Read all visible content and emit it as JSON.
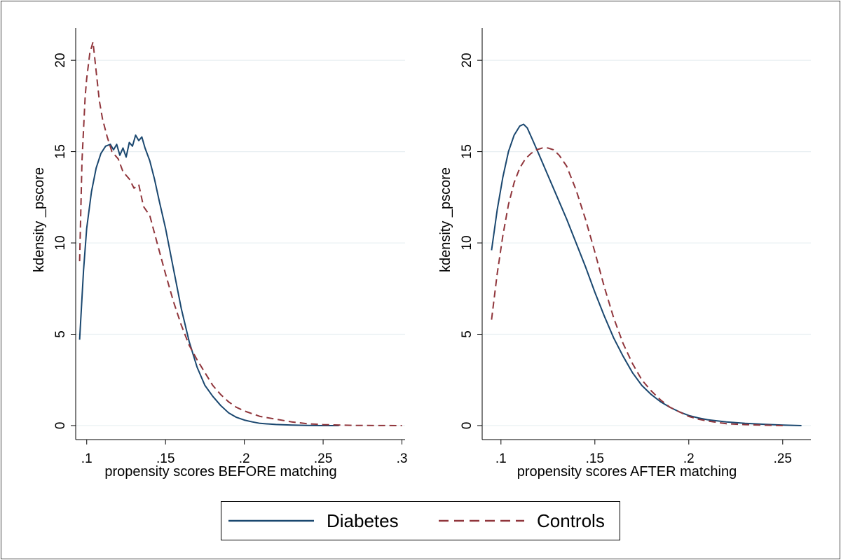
{
  "colors": {
    "diabetes": "#1a476f",
    "controls": "#90353b",
    "grid": "#e8eff2",
    "axis": "#000000"
  },
  "legend": {
    "items": [
      {
        "label": "Diabetes",
        "style": "solid"
      },
      {
        "label": "Controls",
        "style": "dashed"
      }
    ]
  },
  "chart_data": [
    {
      "type": "line",
      "title": "",
      "xlabel": "propensity scores BEFORE matching",
      "ylabel": "kdensity _pscore",
      "xlim": [
        0.093,
        0.302
      ],
      "ylim": [
        -0.5,
        21.5
      ],
      "xticks": [
        0.1,
        0.15,
        0.2,
        0.25,
        0.3
      ],
      "xtick_labels": [
        ".1",
        ".15",
        ".2",
        ".25",
        ".3"
      ],
      "yticks": [
        0,
        5,
        10,
        15,
        20
      ],
      "ytick_labels": [
        "0",
        "5",
        "10",
        "15",
        "20"
      ],
      "grid": true,
      "series": [
        {
          "name": "Diabetes",
          "style": "solid",
          "x": [
            0.0955,
            0.098,
            0.1,
            0.103,
            0.106,
            0.109,
            0.112,
            0.115,
            0.117,
            0.119,
            0.121,
            0.123,
            0.125,
            0.127,
            0.129,
            0.131,
            0.133,
            0.135,
            0.137,
            0.14,
            0.143,
            0.146,
            0.15,
            0.155,
            0.16,
            0.165,
            0.17,
            0.175,
            0.18,
            0.185,
            0.19,
            0.195,
            0.2,
            0.205,
            0.21,
            0.22,
            0.23,
            0.24,
            0.25,
            0.26
          ],
          "y": [
            4.7,
            8.5,
            10.8,
            12.8,
            14.1,
            14.9,
            15.3,
            15.4,
            15.1,
            15.4,
            14.8,
            15.2,
            14.7,
            15.5,
            15.3,
            15.9,
            15.6,
            15.8,
            15.2,
            14.5,
            13.5,
            12.3,
            10.8,
            8.6,
            6.4,
            4.6,
            3.2,
            2.2,
            1.6,
            1.1,
            0.7,
            0.45,
            0.3,
            0.2,
            0.12,
            0.06,
            0.03,
            0.01,
            0.0,
            0.0
          ]
        },
        {
          "name": "Controls",
          "style": "dashed",
          "x": [
            0.0955,
            0.097,
            0.099,
            0.1,
            0.102,
            0.104,
            0.106,
            0.108,
            0.11,
            0.113,
            0.116,
            0.12,
            0.123,
            0.127,
            0.13,
            0.133,
            0.136,
            0.14,
            0.145,
            0.15,
            0.155,
            0.16,
            0.165,
            0.17,
            0.175,
            0.18,
            0.185,
            0.19,
            0.195,
            0.2,
            0.21,
            0.22,
            0.23,
            0.24,
            0.25,
            0.27,
            0.3
          ],
          "y": [
            9.0,
            14.5,
            18.0,
            19.0,
            20.4,
            21.0,
            19.4,
            17.8,
            16.8,
            15.8,
            15.0,
            14.6,
            13.9,
            13.5,
            13.0,
            13.2,
            12.0,
            11.5,
            9.9,
            8.3,
            6.8,
            5.5,
            4.4,
            3.6,
            2.9,
            2.2,
            1.7,
            1.3,
            1.0,
            0.8,
            0.5,
            0.35,
            0.2,
            0.1,
            0.05,
            0.01,
            0.0
          ]
        }
      ]
    },
    {
      "type": "line",
      "title": "",
      "xlabel": "propensity scores AFTER matching",
      "ylabel": "kdensity _pscore",
      "xlim": [
        0.09,
        0.265
      ],
      "ylim": [
        -0.5,
        21.5
      ],
      "xticks": [
        0.1,
        0.15,
        0.2,
        0.25
      ],
      "xtick_labels": [
        ".1",
        ".15",
        ".2",
        ".25"
      ],
      "yticks": [
        0,
        5,
        10,
        15,
        20
      ],
      "ytick_labels": [
        "0",
        "5",
        "10",
        "15",
        "20"
      ],
      "grid": true,
      "series": [
        {
          "name": "Diabetes",
          "style": "solid",
          "x": [
            0.095,
            0.098,
            0.101,
            0.104,
            0.107,
            0.11,
            0.112,
            0.114,
            0.117,
            0.12,
            0.125,
            0.13,
            0.135,
            0.14,
            0.145,
            0.15,
            0.155,
            0.16,
            0.165,
            0.17,
            0.175,
            0.18,
            0.185,
            0.19,
            0.195,
            0.2,
            0.205,
            0.21,
            0.22,
            0.23,
            0.24,
            0.25,
            0.26
          ],
          "y": [
            9.6,
            11.8,
            13.6,
            15.0,
            15.9,
            16.4,
            16.5,
            16.3,
            15.6,
            14.9,
            13.7,
            12.5,
            11.3,
            10.0,
            8.7,
            7.3,
            6.0,
            4.8,
            3.8,
            2.9,
            2.2,
            1.7,
            1.3,
            1.0,
            0.75,
            0.55,
            0.42,
            0.32,
            0.2,
            0.12,
            0.07,
            0.03,
            0.0
          ]
        },
        {
          "name": "Controls",
          "style": "dashed",
          "x": [
            0.095,
            0.098,
            0.101,
            0.104,
            0.107,
            0.11,
            0.113,
            0.116,
            0.119,
            0.122,
            0.125,
            0.128,
            0.131,
            0.135,
            0.14,
            0.145,
            0.15,
            0.155,
            0.16,
            0.165,
            0.17,
            0.175,
            0.18,
            0.185,
            0.19,
            0.195,
            0.2,
            0.205,
            0.21,
            0.22,
            0.23,
            0.24,
            0.25
          ],
          "y": [
            5.8,
            8.3,
            10.4,
            12.1,
            13.3,
            14.1,
            14.6,
            14.9,
            15.1,
            15.2,
            15.2,
            15.1,
            14.8,
            14.2,
            12.9,
            11.3,
            9.5,
            7.6,
            5.9,
            4.5,
            3.4,
            2.5,
            1.9,
            1.4,
            1.0,
            0.75,
            0.5,
            0.35,
            0.25,
            0.1,
            0.05,
            0.02,
            0.0
          ]
        }
      ]
    }
  ]
}
